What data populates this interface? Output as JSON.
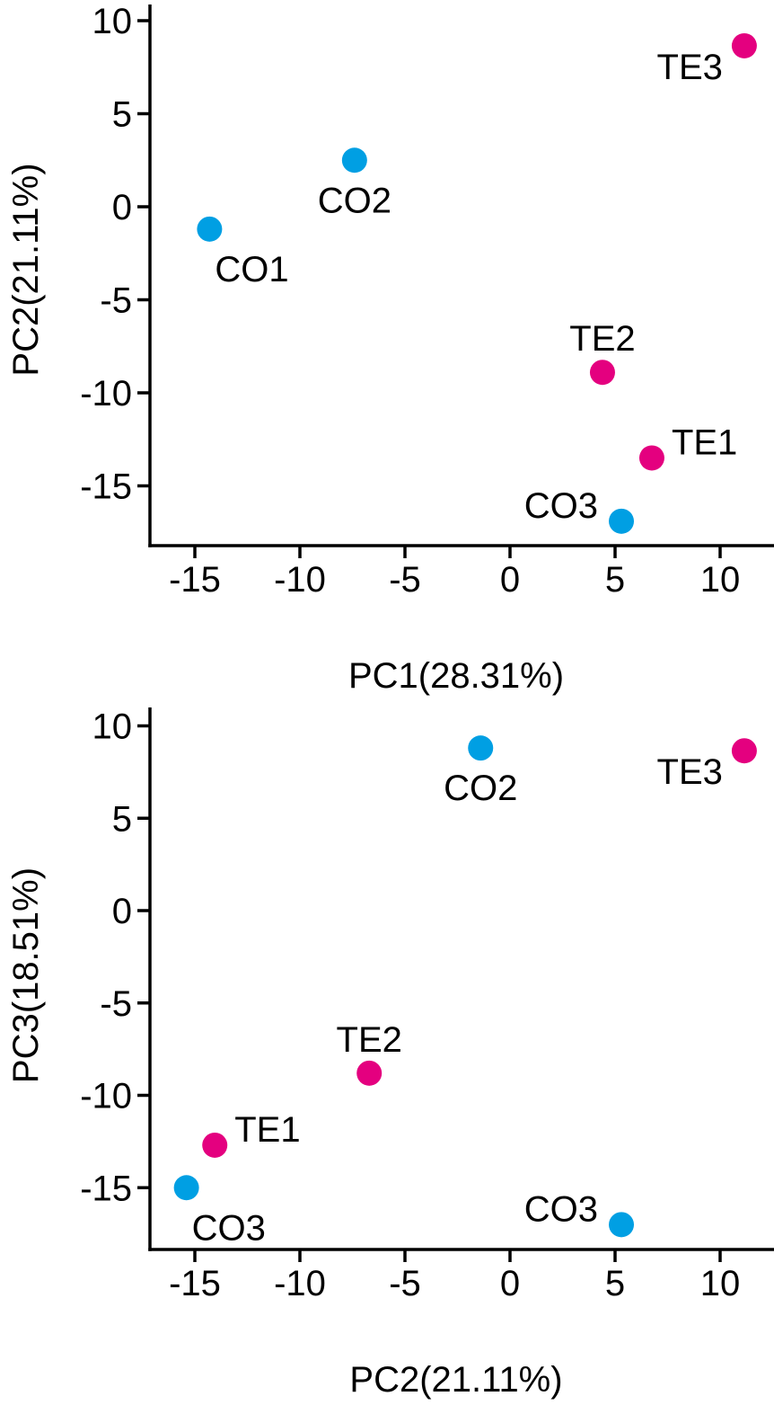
{
  "chart_data": [
    {
      "type": "scatter",
      "title": "",
      "xlabel": "PC1(28.31%)",
      "ylabel": "PC2(21.11%)",
      "xlim": [
        -17.1,
        12.5
      ],
      "ylim": [
        -18.5,
        11.1
      ],
      "xticks": [
        -15,
        -10,
        -5,
        0,
        5,
        10
      ],
      "yticks": [
        10,
        5,
        0,
        -5,
        -10,
        -15
      ],
      "xtick_labels": [
        "-15",
        "-10",
        "-5",
        "0",
        "5",
        "10"
      ],
      "ytick_labels": [
        "10",
        "5",
        "0",
        "-5",
        "-10",
        "-15"
      ],
      "grid": false,
      "legend": "none",
      "series": [
        {
          "name": "CO",
          "color": "#009FE3",
          "points": [
            {
              "label": "CO1",
              "x": -14.3,
              "y": -1.2,
              "label_pos": "below-right"
            },
            {
              "label": "CO2",
              "x": -7.4,
              "y": 2.5,
              "label_pos": "below"
            },
            {
              "label": "CO3",
              "x": 5.3,
              "y": -16.9,
              "label_pos": "above-left"
            }
          ]
        },
        {
          "name": "TE",
          "color": "#E4007F",
          "points": [
            {
              "label": "TE1",
              "x": 6.75,
              "y": -13.5,
              "label_pos": "above-right"
            },
            {
              "label": "TE2",
              "x": 4.4,
              "y": -8.9,
              "label_pos": "above"
            },
            {
              "label": "TE3",
              "x": 11.15,
              "y": 8.65,
              "label_pos": "left"
            }
          ]
        }
      ]
    },
    {
      "type": "scatter",
      "title": "",
      "xlabel": "PC2(21.11%)",
      "ylabel": "PC3(18.51%)",
      "xlim": [
        -17.1,
        12.5
      ],
      "ylim": [
        -18.4,
        11.0
      ],
      "xticks": [
        -15,
        -10,
        -5,
        0,
        5,
        10
      ],
      "yticks": [
        10,
        5,
        0,
        -5,
        -10,
        -15
      ],
      "xtick_labels": [
        "-15",
        "-10",
        "-5",
        "0",
        "5",
        "10"
      ],
      "ytick_labels": [
        "10",
        "5",
        "0",
        "-5",
        "-10",
        "-15"
      ],
      "grid": false,
      "legend": "none",
      "series": [
        {
          "name": "CO",
          "color": "#009FE3",
          "points": [
            {
              "label": "CO2",
              "x": -1.4,
              "y": 8.8,
              "label_pos": "below"
            },
            {
              "label": "CO3",
              "x": -15.4,
              "y": -15.0,
              "label_pos": "below-right"
            },
            {
              "label": "CO3",
              "x": 5.3,
              "y": -17.0,
              "label_pos": "above-left"
            }
          ]
        },
        {
          "name": "TE",
          "color": "#E4007F",
          "points": [
            {
              "label": "TE1",
              "x": -14.05,
              "y": -12.7,
              "label_pos": "above-right"
            },
            {
              "label": "TE2",
              "x": -6.7,
              "y": -8.8,
              "label_pos": "above"
            },
            {
              "label": "TE3",
              "x": 11.15,
              "y": 8.65,
              "label_pos": "left"
            }
          ]
        }
      ]
    }
  ]
}
